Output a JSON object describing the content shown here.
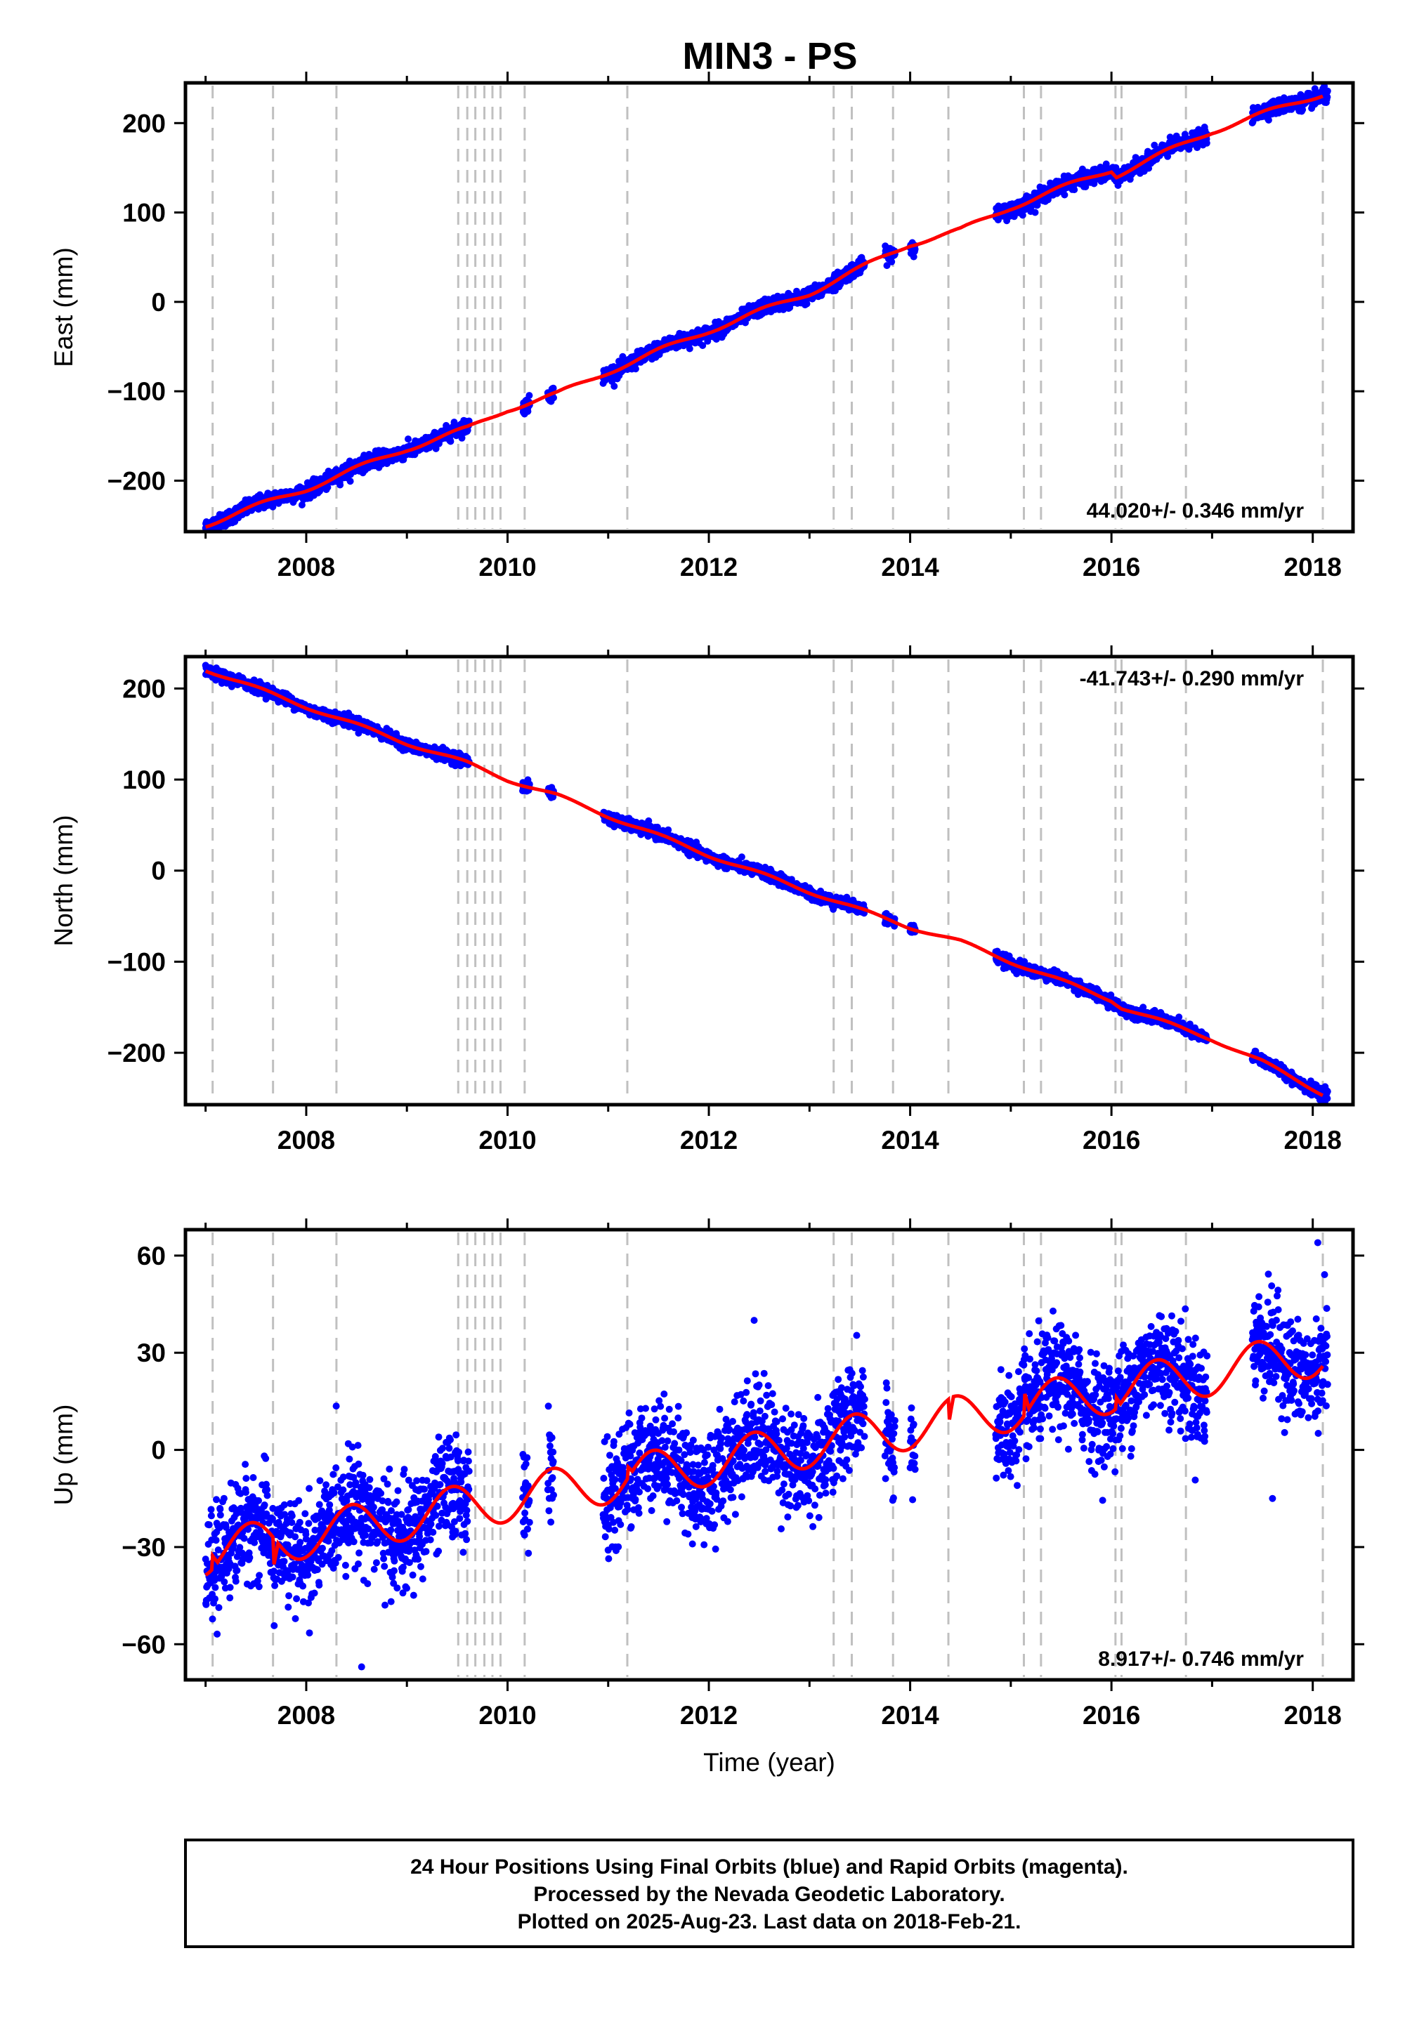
{
  "title": "MIN3 - PS",
  "footer": {
    "lines": [
      "24 Hour Positions Using Final Orbits (blue) and Rapid Orbits (magenta).",
      "Processed by the Nevada Geodetic Laboratory.",
      "Plotted on 2025-Aug-23. Last data on 2018-Feb-21."
    ]
  },
  "colors": {
    "observations": "#0000ff",
    "model": "#ff0000",
    "steps": "#c0c0c0",
    "frame": "#000000"
  },
  "steps": [
    2007.07,
    2007.67,
    2008.3,
    2009.51,
    2009.6,
    2009.68,
    2009.77,
    2009.85,
    2009.93,
    2010.17,
    2011.19,
    2013.24,
    2013.42,
    2013.83,
    2014.38,
    2015.13,
    2015.3,
    2016.04,
    2016.1,
    2016.74,
    2018.1
  ],
  "chart_data": [
    {
      "type": "scatter",
      "component": "east",
      "ylabel": "East (mm)",
      "xlabel": "",
      "rate": "44.020+/- 0.346 mm/yr",
      "rate_position": "bottom-right",
      "xlim": [
        2006.8,
        2018.4
      ],
      "ylim": [
        -257,
        245
      ],
      "xticks": [
        2008,
        2010,
        2012,
        2014,
        2016,
        2018
      ],
      "yticks": [
        -200,
        -100,
        0,
        100,
        200
      ],
      "yticklabels": [
        "−200",
        "−100",
        "0",
        "100",
        "200"
      ],
      "model": [
        [
          2007.0,
          -249
        ],
        [
          2008.0,
          -209
        ],
        [
          2009.0,
          -164
        ],
        [
          2009.6,
          -142
        ],
        [
          2010.0,
          -120
        ],
        [
          2010.5,
          -103
        ],
        [
          2011.0,
          -78
        ],
        [
          2012.0,
          -32
        ],
        [
          2013.0,
          10
        ],
        [
          2013.5,
          37
        ],
        [
          2014.0,
          65
        ],
        [
          2014.5,
          80
        ],
        [
          2015.0,
          106
        ],
        [
          2016.0,
          148
        ],
        [
          2016.05,
          142
        ],
        [
          2017.0,
          191
        ],
        [
          2018.1,
          233
        ]
      ],
      "model_ripple": 3,
      "noise": 4,
      "observed_ranges": [
        [
          2007.0,
          2009.62
        ],
        [
          2010.15,
          2010.22
        ],
        [
          2010.4,
          2010.46
        ],
        [
          2010.95,
          2013.55
        ],
        [
          2013.75,
          2013.85
        ],
        [
          2014.0,
          2014.05
        ],
        [
          2014.85,
          2016.95
        ],
        [
          2017.4,
          2018.15
        ]
      ]
    },
    {
      "type": "scatter",
      "component": "north",
      "ylabel": "North (mm)",
      "xlabel": "",
      "rate": "-41.743+/- 0.290 mm/yr",
      "rate_position": "top-right",
      "xlim": [
        2006.8,
        2018.4
      ],
      "ylim": [
        -257,
        235
      ],
      "xticks": [
        2008,
        2010,
        2012,
        2014,
        2016,
        2018
      ],
      "yticks": [
        -200,
        -100,
        0,
        100,
        200
      ],
      "yticklabels": [
        "−200",
        "−100",
        "0",
        "100",
        "200"
      ],
      "model": [
        [
          2007.0,
          221
        ],
        [
          2008.0,
          180
        ],
        [
          2009.0,
          140
        ],
        [
          2009.6,
          118
        ],
        [
          2010.0,
          100
        ],
        [
          2010.5,
          82
        ],
        [
          2011.0,
          60
        ],
        [
          2012.0,
          17
        ],
        [
          2013.0,
          -23
        ],
        [
          2013.5,
          -43
        ],
        [
          2014.0,
          -62
        ],
        [
          2014.5,
          -78
        ],
        [
          2015.0,
          -100
        ],
        [
          2016.0,
          -142
        ],
        [
          2016.1,
          -150
        ],
        [
          2017.0,
          -185
        ],
        [
          2017.5,
          -210
        ],
        [
          2018.1,
          -245
        ]
      ],
      "model_ripple": 2,
      "noise": 3,
      "observed_ranges": [
        [
          2007.0,
          2009.62
        ],
        [
          2010.15,
          2010.22
        ],
        [
          2010.4,
          2010.46
        ],
        [
          2010.95,
          2013.55
        ],
        [
          2013.75,
          2013.85
        ],
        [
          2014.0,
          2014.05
        ],
        [
          2014.85,
          2016.95
        ],
        [
          2017.4,
          2018.15
        ]
      ]
    },
    {
      "type": "scatter",
      "component": "up",
      "ylabel": "Up (mm)",
      "xlabel": "Time (year)",
      "rate": "8.917+/- 0.746 mm/yr",
      "rate_position": "bottom-right",
      "xlim": [
        2006.8,
        2018.4
      ],
      "ylim": [
        -71,
        68
      ],
      "xticks": [
        2008,
        2010,
        2012,
        2014,
        2016,
        2018
      ],
      "yticks": [
        -60,
        -30,
        0,
        30,
        60
      ],
      "yticklabels": [
        "−60",
        "−30",
        "0",
        "30",
        "60"
      ],
      "trend": [
        [
          2007.0,
          -32
        ],
        [
          2018.1,
          30
        ]
      ],
      "seasonal_amplitude": 7,
      "noise": 8,
      "offsets": [
        [
          2007.07,
          4
        ],
        [
          2007.67,
          -10
        ],
        [
          2011.19,
          4
        ],
        [
          2014.38,
          -8
        ],
        [
          2015.13,
          8
        ],
        [
          2016.04,
          4
        ],
        [
          2018.1,
          10
        ]
      ],
      "observed_ranges": [
        [
          2007.0,
          2009.62
        ],
        [
          2010.15,
          2010.22
        ],
        [
          2010.4,
          2010.46
        ],
        [
          2010.95,
          2013.55
        ],
        [
          2013.75,
          2013.85
        ],
        [
          2014.0,
          2014.05
        ],
        [
          2014.85,
          2016.95
        ],
        [
          2017.4,
          2018.15
        ]
      ],
      "outliers": [
        [
          2008.55,
          -67
        ],
        [
          2012.45,
          40
        ],
        [
          2017.6,
          -15
        ],
        [
          2018.05,
          64
        ]
      ]
    }
  ]
}
